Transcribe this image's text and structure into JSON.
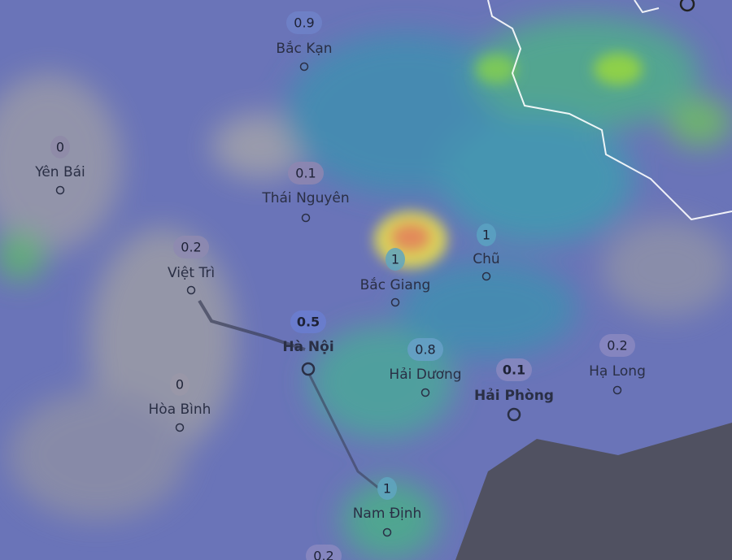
{
  "cities": [
    {
      "name": "Bắc Kạn",
      "value": 0.9
    },
    {
      "name": "Yên Bái",
      "value": 0
    },
    {
      "name": "Thái Nguyên",
      "value": 0.1
    },
    {
      "name": "Việt Trì",
      "value": 0.2
    },
    {
      "name": "Bắc Giang",
      "value": 1
    },
    {
      "name": "Chũ",
      "value": 1
    },
    {
      "name": "Hà Nội",
      "value": 0.5
    },
    {
      "name": "Hải Dương",
      "value": 0.8
    },
    {
      "name": "Hải Phòng",
      "value": 0.1
    },
    {
      "name": "Hạ Long",
      "value": 0.2
    },
    {
      "name": "Hòa Bình",
      "value": 0
    },
    {
      "name": "Nam Định",
      "value": 1
    },
    {
      "value": 0.2
    }
  ]
}
